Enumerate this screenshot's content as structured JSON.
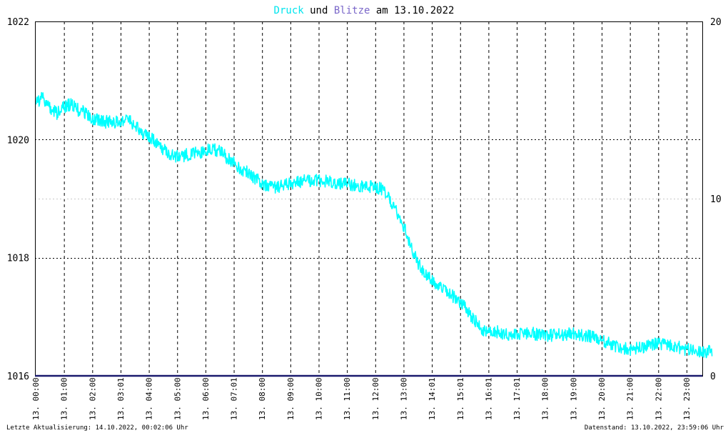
{
  "title": {
    "part1": "Druck",
    "part2": " und ",
    "part3": "Blitze",
    "part4": " am 13.10.2022",
    "colors": {
      "part1": "#00e5ee",
      "part2": "#000000",
      "part3": "#7a67c9",
      "part4": "#000000"
    }
  },
  "footer": {
    "left": "Letzte Aktualisierung: 14.10.2022, 00:02:06 Uhr",
    "right": "Datenstand: 13.10.2022, 23:59:06 Uhr"
  },
  "chart_data": {
    "type": "line",
    "title": "Druck und Blitze am 13.10.2022",
    "x_tick_labels": [
      "13. 00:00",
      "13. 01:00",
      "13. 02:00",
      "13. 03:01",
      "13. 04:00",
      "13. 05:00",
      "13. 06:00",
      "13. 07:01",
      "13. 08:00",
      "13. 09:00",
      "13. 10:00",
      "13. 11:00",
      "13. 12:00",
      "13. 13:00",
      "13. 14:01",
      "13. 15:01",
      "13. 16:01",
      "13. 17:01",
      "13. 18:00",
      "13. 19:00",
      "13. 20:00",
      "13. 21:00",
      "13. 22:00",
      "13. 23:00"
    ],
    "x_unit": "hours",
    "xlim": [
      0,
      24
    ],
    "y_left": {
      "lim": [
        1016,
        1022
      ],
      "ticks": [
        1016,
        1018,
        1020,
        1022
      ]
    },
    "y_right": {
      "lim": [
        0,
        20
      ],
      "ticks": [
        0,
        10,
        20
      ]
    },
    "grid": true,
    "series": [
      {
        "name": "Druck",
        "axis": "left",
        "color": "#00ffff",
        "x": [
          0,
          0.25,
          0.5,
          0.75,
          1,
          1.25,
          1.5,
          1.75,
          2,
          2.5,
          3,
          3.25,
          3.5,
          3.75,
          4,
          4.25,
          4.5,
          4.75,
          5,
          5.5,
          6,
          6.25,
          6.5,
          6.75,
          7,
          7.25,
          7.5,
          7.75,
          8,
          8.5,
          9,
          9.5,
          10,
          10.5,
          11,
          11.5,
          12,
          12.25,
          12.5,
          12.75,
          13,
          13.25,
          13.5,
          13.75,
          14,
          14.25,
          14.5,
          14.75,
          15,
          15.25,
          15.5,
          15.75,
          16,
          16.25,
          16.5,
          17,
          17.5,
          18,
          18.5,
          19,
          19.5,
          20,
          20.5,
          21,
          21.5,
          22,
          22.5,
          23,
          23.5,
          23.9
        ],
        "values": [
          1020.65,
          1020.7,
          1020.55,
          1020.45,
          1020.55,
          1020.6,
          1020.5,
          1020.45,
          1020.35,
          1020.3,
          1020.3,
          1020.35,
          1020.25,
          1020.1,
          1020.05,
          1019.95,
          1019.85,
          1019.75,
          1019.72,
          1019.75,
          1019.8,
          1019.85,
          1019.8,
          1019.7,
          1019.62,
          1019.5,
          1019.45,
          1019.35,
          1019.25,
          1019.2,
          1019.25,
          1019.3,
          1019.3,
          1019.28,
          1019.25,
          1019.22,
          1019.2,
          1019.15,
          1019.0,
          1018.8,
          1018.55,
          1018.2,
          1017.9,
          1017.75,
          1017.6,
          1017.5,
          1017.45,
          1017.35,
          1017.25,
          1017.1,
          1016.95,
          1016.8,
          1016.72,
          1016.75,
          1016.72,
          1016.7,
          1016.72,
          1016.68,
          1016.7,
          1016.72,
          1016.68,
          1016.6,
          1016.5,
          1016.45,
          1016.48,
          1016.55,
          1016.5,
          1016.45,
          1016.42,
          1016.4
        ]
      },
      {
        "name": "Blitze",
        "axis": "right",
        "color": "#1a1a6e",
        "x": [
          0,
          24
        ],
        "values": [
          0,
          0
        ]
      }
    ]
  }
}
